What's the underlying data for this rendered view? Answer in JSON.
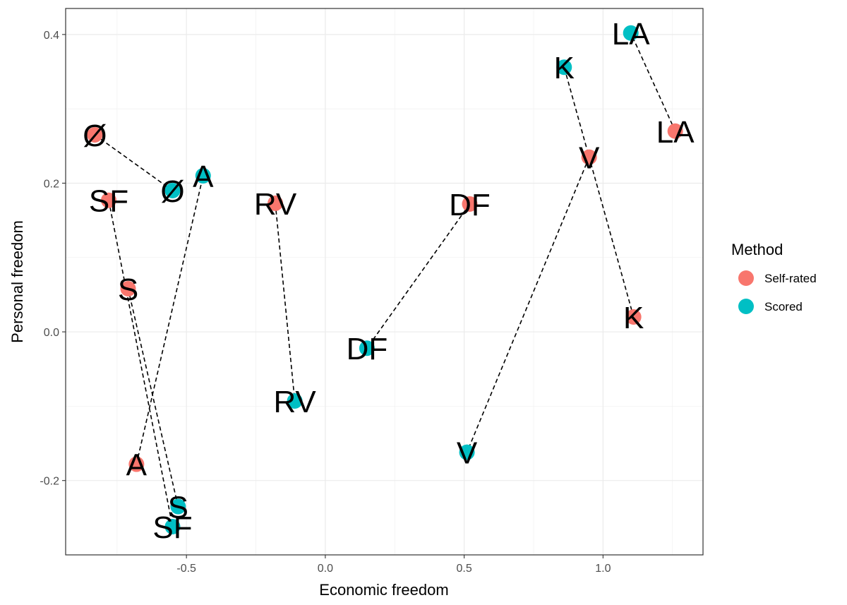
{
  "chart_data": {
    "type": "scatter",
    "xlabel": "Economic freedom",
    "ylabel": "Personal freedom",
    "xlim": [
      -0.935,
      1.36
    ],
    "ylim": [
      -0.3,
      0.435
    ],
    "x_ticks": [
      -0.5,
      0.0,
      0.5,
      1.0
    ],
    "x_tick_labels": [
      "-0.5",
      "0.0",
      "0.5",
      "1.0"
    ],
    "y_ticks": [
      -0.2,
      0.0,
      0.2,
      0.4
    ],
    "y_tick_labels": [
      "-0.2",
      "0.0",
      "0.2",
      "0.4"
    ],
    "grid": true,
    "legend": {
      "title": "Method",
      "position": "right",
      "entries": [
        {
          "name": "Self-rated",
          "color": "#F8766D"
        },
        {
          "name": "Scored",
          "color": "#00BFC4"
        }
      ]
    },
    "series": [
      {
        "name": "Self-rated",
        "color": "#F8766D",
        "points": [
          {
            "label": "Ø",
            "x": -0.83,
            "y": 0.265
          },
          {
            "label": "SF",
            "x": -0.78,
            "y": 0.177
          },
          {
            "label": "S",
            "x": -0.71,
            "y": 0.058
          },
          {
            "label": "A",
            "x": -0.68,
            "y": -0.178
          },
          {
            "label": "RV",
            "x": -0.18,
            "y": 0.173
          },
          {
            "label": "DF",
            "x": 0.52,
            "y": 0.172
          },
          {
            "label": "V",
            "x": 0.95,
            "y": 0.235
          },
          {
            "label": "K",
            "x": 1.11,
            "y": 0.02
          },
          {
            "label": "LA",
            "x": 1.26,
            "y": 0.27
          }
        ]
      },
      {
        "name": "Scored",
        "color": "#00BFC4",
        "points": [
          {
            "label": "Ø",
            "x": -0.55,
            "y": 0.19
          },
          {
            "label": "A",
            "x": -0.44,
            "y": 0.21
          },
          {
            "label": "S",
            "x": -0.53,
            "y": -0.235
          },
          {
            "label": "SF",
            "x": -0.55,
            "y": -0.262
          },
          {
            "label": "RV",
            "x": -0.11,
            "y": -0.093
          },
          {
            "label": "DF",
            "x": 0.15,
            "y": -0.022
          },
          {
            "label": "V",
            "x": 0.51,
            "y": -0.162
          },
          {
            "label": "K",
            "x": 0.86,
            "y": 0.356
          },
          {
            "label": "LA",
            "x": 1.1,
            "y": 0.402
          }
        ]
      }
    ],
    "connections": [
      "Ø",
      "SF",
      "S",
      "A",
      "RV",
      "DF",
      "V",
      "K",
      "LA"
    ]
  }
}
